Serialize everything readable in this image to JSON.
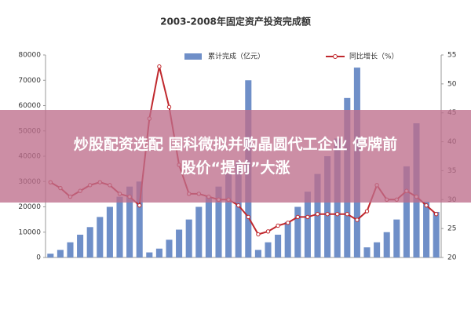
{
  "chart_data": {
    "type": "bar-line",
    "title": "2003-2008年固定资产投资完成额",
    "categories": [
      null,
      null,
      null,
      null,
      null,
      null,
      null,
      null,
      null,
      null,
      null,
      null,
      null,
      null,
      null,
      null,
      null,
      null,
      null,
      null,
      null,
      null,
      null,
      null,
      null,
      null,
      null,
      null,
      null,
      null,
      null,
      null,
      null,
      null,
      null,
      null,
      null,
      null,
      null,
      null
    ],
    "series": [
      {
        "name": "累计完成（亿元）",
        "type": "bar",
        "color": "#6f8fc8",
        "values": [
          1500,
          3000,
          6000,
          9000,
          12000,
          16000,
          20000,
          24000,
          28000,
          30000,
          2000,
          3500,
          7000,
          11000,
          15000,
          20000,
          24000,
          28000,
          33000,
          38000,
          70000,
          3000,
          6000,
          9000,
          14000,
          20000,
          26000,
          33000,
          40000,
          47000,
          63000,
          75000,
          4000,
          6000,
          10000,
          15000,
          36000,
          53000,
          22000,
          18000
        ]
      },
      {
        "name": "同比增长（%）",
        "type": "line",
        "axis": "y2",
        "color": "#c0282d",
        "values": [
          33,
          32,
          30.5,
          31.5,
          32.5,
          33,
          32.5,
          31,
          30.5,
          29,
          44,
          53,
          46,
          36,
          31,
          31,
          30.5,
          30,
          30,
          29,
          27,
          24,
          24.5,
          25.5,
          26,
          27,
          27,
          27.5,
          27.5,
          27.5,
          27.5,
          26.5,
          28,
          32.5,
          30,
          30,
          31.5,
          30.5,
          29,
          27.5
        ]
      }
    ],
    "ylim": [
      0,
      80000
    ],
    "yticks": [
      0,
      10000,
      20000,
      30000,
      40000,
      50000,
      60000,
      70000,
      80000
    ],
    "y2lim": [
      20,
      55
    ],
    "y2ticks": [
      20,
      25,
      30,
      35,
      40,
      45,
      50,
      55
    ]
  },
  "overlay": {
    "lines": [
      "炒股配资选配 国科微拟并购晶圆代工企业 停牌前",
      "股价“提前”大涨"
    ]
  }
}
